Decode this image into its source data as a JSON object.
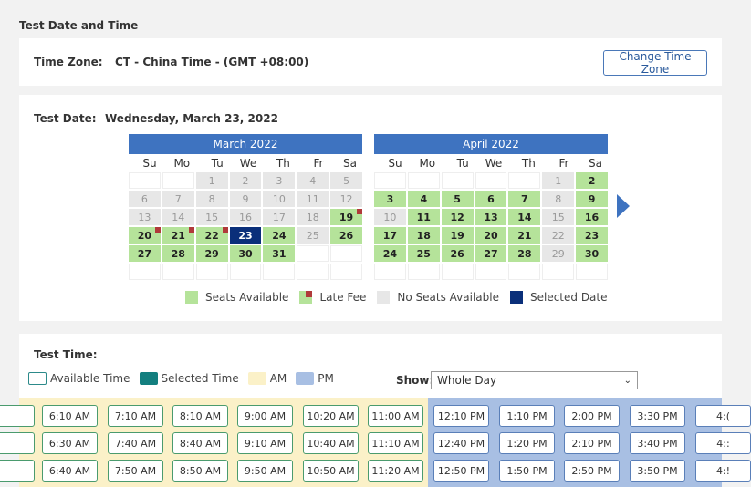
{
  "section_title": "Test Date and Time",
  "timezone": {
    "label": "Time Zone:",
    "value": "CT - China Time - (GMT +08:00)",
    "button": "Change Time Zone"
  },
  "test_date": {
    "label": "Test Date:",
    "value": "Wednesday, March 23, 2022"
  },
  "calendars": [
    {
      "title": "March 2022",
      "dow": [
        "Su",
        "Mo",
        "Tu",
        "We",
        "Th",
        "Fr",
        "Sa"
      ],
      "cells": [
        {
          "d": "",
          "s": "empty"
        },
        {
          "d": "",
          "s": "empty"
        },
        {
          "d": "1",
          "s": "noseat"
        },
        {
          "d": "2",
          "s": "noseat"
        },
        {
          "d": "3",
          "s": "noseat"
        },
        {
          "d": "4",
          "s": "noseat"
        },
        {
          "d": "5",
          "s": "noseat"
        },
        {
          "d": "6",
          "s": "noseat"
        },
        {
          "d": "7",
          "s": "noseat"
        },
        {
          "d": "8",
          "s": "noseat"
        },
        {
          "d": "9",
          "s": "noseat"
        },
        {
          "d": "10",
          "s": "noseat"
        },
        {
          "d": "11",
          "s": "noseat"
        },
        {
          "d": "12",
          "s": "noseat"
        },
        {
          "d": "13",
          "s": "noseat"
        },
        {
          "d": "14",
          "s": "noseat"
        },
        {
          "d": "15",
          "s": "noseat"
        },
        {
          "d": "16",
          "s": "noseat"
        },
        {
          "d": "17",
          "s": "noseat"
        },
        {
          "d": "18",
          "s": "noseat"
        },
        {
          "d": "19",
          "s": "avail late"
        },
        {
          "d": "20",
          "s": "avail late"
        },
        {
          "d": "21",
          "s": "avail late"
        },
        {
          "d": "22",
          "s": "avail late"
        },
        {
          "d": "23",
          "s": "selected"
        },
        {
          "d": "24",
          "s": "avail"
        },
        {
          "d": "25",
          "s": "noseat"
        },
        {
          "d": "26",
          "s": "avail"
        },
        {
          "d": "27",
          "s": "avail"
        },
        {
          "d": "28",
          "s": "avail"
        },
        {
          "d": "29",
          "s": "avail"
        },
        {
          "d": "30",
          "s": "avail"
        },
        {
          "d": "31",
          "s": "avail"
        },
        {
          "d": "",
          "s": "empty"
        },
        {
          "d": "",
          "s": "empty"
        },
        {
          "d": "",
          "s": "empty"
        },
        {
          "d": "",
          "s": "empty"
        },
        {
          "d": "",
          "s": "empty"
        },
        {
          "d": "",
          "s": "empty"
        },
        {
          "d": "",
          "s": "empty"
        },
        {
          "d": "",
          "s": "empty"
        },
        {
          "d": "",
          "s": "empty"
        }
      ]
    },
    {
      "title": "April 2022",
      "dow": [
        "Su",
        "Mo",
        "Tu",
        "We",
        "Th",
        "Fr",
        "Sa"
      ],
      "cells": [
        {
          "d": "",
          "s": "empty"
        },
        {
          "d": "",
          "s": "empty"
        },
        {
          "d": "",
          "s": "empty"
        },
        {
          "d": "",
          "s": "empty"
        },
        {
          "d": "",
          "s": "empty"
        },
        {
          "d": "1",
          "s": "noseat"
        },
        {
          "d": "2",
          "s": "avail"
        },
        {
          "d": "3",
          "s": "avail"
        },
        {
          "d": "4",
          "s": "avail"
        },
        {
          "d": "5",
          "s": "avail"
        },
        {
          "d": "6",
          "s": "avail"
        },
        {
          "d": "7",
          "s": "avail"
        },
        {
          "d": "8",
          "s": "noseat"
        },
        {
          "d": "9",
          "s": "avail"
        },
        {
          "d": "10",
          "s": "noseat"
        },
        {
          "d": "11",
          "s": "avail"
        },
        {
          "d": "12",
          "s": "avail"
        },
        {
          "d": "13",
          "s": "avail"
        },
        {
          "d": "14",
          "s": "avail"
        },
        {
          "d": "15",
          "s": "noseat"
        },
        {
          "d": "16",
          "s": "avail"
        },
        {
          "d": "17",
          "s": "avail"
        },
        {
          "d": "18",
          "s": "avail"
        },
        {
          "d": "19",
          "s": "avail"
        },
        {
          "d": "20",
          "s": "avail"
        },
        {
          "d": "21",
          "s": "avail"
        },
        {
          "d": "22",
          "s": "noseat"
        },
        {
          "d": "23",
          "s": "avail"
        },
        {
          "d": "24",
          "s": "avail"
        },
        {
          "d": "25",
          "s": "avail"
        },
        {
          "d": "26",
          "s": "avail"
        },
        {
          "d": "27",
          "s": "avail"
        },
        {
          "d": "28",
          "s": "avail"
        },
        {
          "d": "29",
          "s": "noseat"
        },
        {
          "d": "30",
          "s": "avail"
        },
        {
          "d": "",
          "s": "empty"
        },
        {
          "d": "",
          "s": "empty"
        },
        {
          "d": "",
          "s": "empty"
        },
        {
          "d": "",
          "s": "empty"
        },
        {
          "d": "",
          "s": "empty"
        },
        {
          "d": "",
          "s": "empty"
        },
        {
          "d": "",
          "s": "empty"
        }
      ]
    }
  ],
  "date_legend": {
    "seats": "Seats Available",
    "late": "Late Fee",
    "noseats": "No Seats Available",
    "selected": "Selected Date"
  },
  "test_time": {
    "label": "Test Time:",
    "legend": {
      "available": "Available Time",
      "selected": "Selected Time",
      "am": "AM",
      "pm": "PM"
    },
    "show_label": "Show:",
    "show_value": "Whole Day"
  },
  "time_slots": [
    [
      "",
      "6:10 AM",
      "7:10 AM",
      "8:10 AM",
      "9:00 AM",
      "10:20 AM",
      "11:00 AM",
      "12:10 PM",
      "1:10 PM",
      "2:00 PM",
      "3:30 PM",
      "4:("
    ],
    [
      "",
      "6:30 AM",
      "7:40 AM",
      "8:40 AM",
      "9:10 AM",
      "10:40 AM",
      "11:10 AM",
      "12:40 PM",
      "1:20 PM",
      "2:10 PM",
      "3:40 PM",
      "4::"
    ],
    [
      "",
      "6:40 AM",
      "7:50 AM",
      "8:50 AM",
      "9:50 AM",
      "10:50 AM",
      "11:20 AM",
      "12:50 PM",
      "1:50 PM",
      "2:50 PM",
      "3:50 PM",
      "4:!"
    ]
  ],
  "colors": {
    "header_blue": "#3e73c0",
    "available_green": "#b5e39a",
    "late_fee_red": "#b03a3a",
    "selected_navy": "#0a2f7a",
    "no_seats_gray": "#e7e7e7",
    "am_bg": "#fbf1c8",
    "pm_bg": "#a8bfe3",
    "selected_time_teal": "#137f7f"
  }
}
